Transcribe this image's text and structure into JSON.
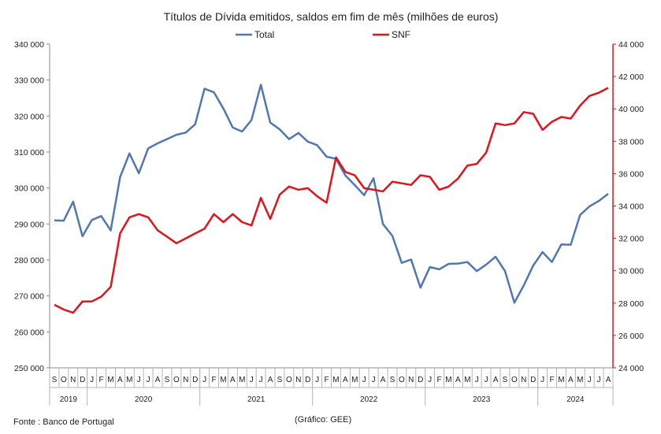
{
  "chart_data": {
    "type": "line",
    "title": "Títulos de Dívida emitidos, saldos em fim de mês  (milhões de euros)",
    "source": "Fonte : Banco de Portugal",
    "credit": "(Gráfico: GEE)",
    "months": [
      "S",
      "O",
      "N",
      "D",
      "J",
      "F",
      "M",
      "A",
      "M",
      "J",
      "J",
      "A",
      "S",
      "O",
      "N",
      "D",
      "J",
      "F",
      "M",
      "A",
      "M",
      "J",
      "J",
      "A",
      "S",
      "O",
      "N",
      "D",
      "J",
      "F",
      "M",
      "A",
      "M",
      "J",
      "J",
      "A",
      "S",
      "O",
      "N",
      "D",
      "J",
      "F",
      "M",
      "A",
      "M",
      "J",
      "J",
      "A",
      "S",
      "O",
      "N",
      "D",
      "J",
      "F",
      "M",
      "A",
      "M",
      "J",
      "J",
      "A"
    ],
    "years": [
      {
        "label": "2019",
        "months": 4
      },
      {
        "label": "2020",
        "months": 12
      },
      {
        "label": "2021",
        "months": 12
      },
      {
        "label": "2022",
        "months": 12
      },
      {
        "label": "2023",
        "months": 12
      },
      {
        "label": "2024",
        "months": 8
      }
    ],
    "y_left": {
      "min": 250000,
      "max": 340000,
      "ticks": [
        "250 000",
        "260 000",
        "270 000",
        "280 000",
        "290 000",
        "300 000",
        "310 000",
        "320 000",
        "330 000",
        "340 000"
      ]
    },
    "y_right": {
      "min": 24000,
      "max": 44000,
      "ticks": [
        "24 000",
        "26 000",
        "28 000",
        "30 000",
        "32 000",
        "34 000",
        "36 000",
        "38 000",
        "40 000",
        "42 000",
        "44 000"
      ]
    },
    "series": [
      {
        "name": "Total",
        "axis": "left",
        "color": "#4f78b3",
        "values": [
          291000,
          290900,
          296200,
          286600,
          291100,
          292200,
          288200,
          303000,
          309600,
          304100,
          311000,
          312400,
          313600,
          314800,
          315400,
          317700,
          327600,
          326600,
          322100,
          316800,
          315700,
          318900,
          328700,
          318200,
          316300,
          313600,
          315300,
          312900,
          311900,
          308700,
          308100,
          303500,
          300800,
          298000,
          302700,
          290000,
          286700,
          279200,
          280100,
          272300,
          278000,
          277400,
          278900,
          279000,
          279400,
          276900,
          278700,
          280900,
          276900,
          268100,
          272900,
          278400,
          282200,
          279400,
          284300,
          284200,
          292500,
          294900,
          296400,
          298400
        ]
      },
      {
        "name": "SNF",
        "axis": "right",
        "color": "#e0141b",
        "values": [
          27900,
          27600,
          27400,
          28100,
          28100,
          28400,
          29000,
          32300,
          33300,
          33500,
          33300,
          32500,
          32100,
          31700,
          32000,
          32300,
          32600,
          33500,
          33000,
          33500,
          33000,
          32800,
          34500,
          33200,
          34700,
          35200,
          35000,
          35100,
          34600,
          34200,
          37000,
          36100,
          35900,
          35100,
          35000,
          34900,
          35500,
          35400,
          35300,
          35900,
          35800,
          35000,
          35200,
          35700,
          36500,
          36600,
          37300,
          39100,
          39000,
          39100,
          39800,
          39700,
          38700,
          39200,
          39500,
          39400,
          40200,
          40800,
          41000,
          41300
        ]
      }
    ]
  }
}
